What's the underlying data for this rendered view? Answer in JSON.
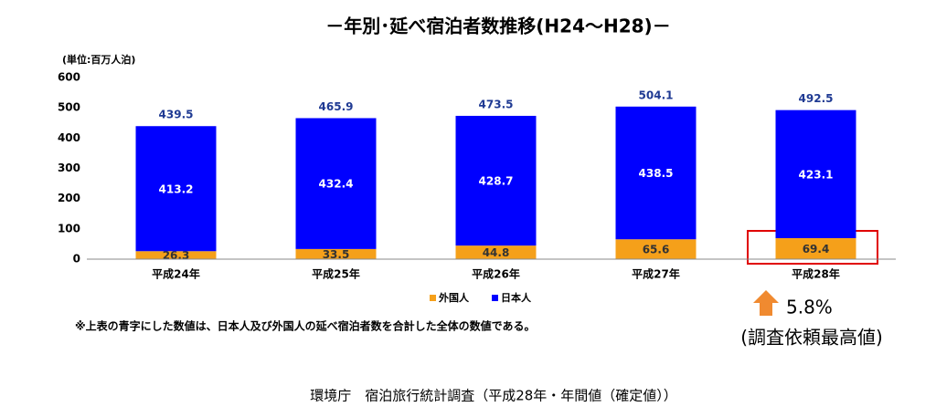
{
  "chart_data": {
    "type": "stacked_bar",
    "title": "－年別･延べ宿泊者数推移(H24～H28)－",
    "y_unit_label": "(単位:百万人泊)",
    "categories": [
      "平成24年",
      "平成25年",
      "平成26年",
      "平成27年",
      "平成28年"
    ],
    "series": [
      {
        "name": "外国人",
        "color": "#f5a01a",
        "values": [
          26.3,
          33.5,
          44.8,
          65.6,
          69.4
        ]
      },
      {
        "name": "日本人",
        "color": "#0000ff",
        "values": [
          413.2,
          432.4,
          428.7,
          438.5,
          423.1
        ]
      }
    ],
    "totals": [
      439.5,
      465.9,
      473.5,
      504.1,
      492.5
    ],
    "ylim": [
      0,
      600
    ],
    "yticks": [
      0,
      100,
      200,
      300,
      400,
      500,
      600
    ],
    "grid": false,
    "note": "※上表の青字にした数値は、日本人及び外国人の延べ宿泊者数を合計した全体の数値である。",
    "annotations": [
      "5.8%",
      "(調査依頼最高値)"
    ],
    "source": "環境庁　宿泊旅行統計調査（平成28年・年間値（確定値））"
  }
}
